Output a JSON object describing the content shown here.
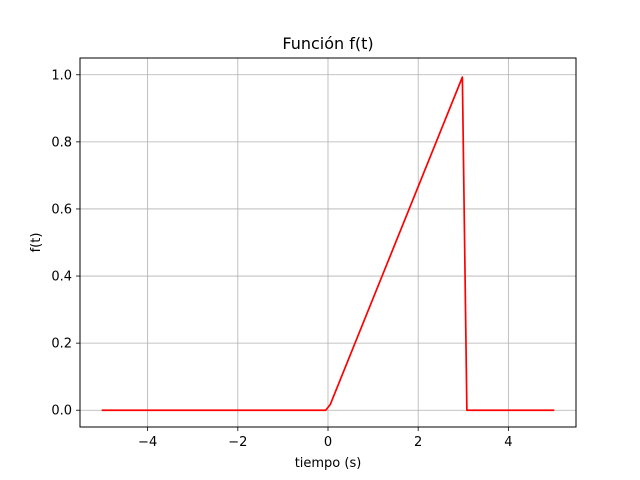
{
  "chart_data": {
    "type": "line",
    "title": "Función f(t)",
    "xlabel": "tiempo (s)",
    "ylabel": "f(t)",
    "xlim": [
      -5.5,
      5.5
    ],
    "ylim": [
      -0.05,
      1.05
    ],
    "grid": true,
    "xticks": [
      -4,
      -2,
      0,
      2,
      4
    ],
    "xtick_labels": [
      "−4",
      "−2",
      "0",
      "2",
      "4"
    ],
    "yticks": [
      0.0,
      0.2,
      0.4,
      0.6,
      0.8,
      1.0
    ],
    "ytick_labels": [
      "0.0",
      "0.2",
      "0.4",
      "0.6",
      "0.8",
      "1.0"
    ],
    "series": [
      {
        "color": "#ff0000",
        "x": [
          -5.0,
          -0.05,
          0.05,
          2.98,
          3.08,
          5.0
        ],
        "y": [
          0.0,
          0.0,
          0.017,
          0.993,
          0.0,
          0.0
        ]
      }
    ]
  }
}
